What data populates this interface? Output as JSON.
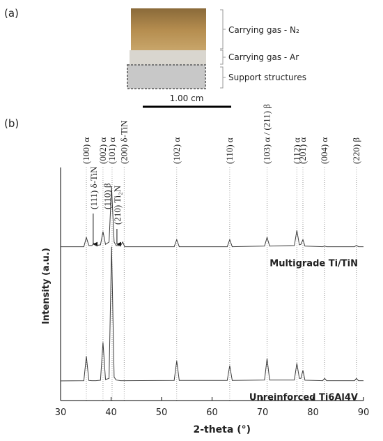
{
  "panel_a": {
    "label": "(a)",
    "layers": [
      "Carrying gas - N₂",
      "Carrying gas - Ar",
      "Support structures"
    ],
    "scale_bar": "1.00 cm"
  },
  "chart_data": {
    "type": "line",
    "panel_label": "(b)",
    "xlabel": "2-theta (°)",
    "ylabel": "Intensity (a.u.)",
    "x": [
      30,
      34.6,
      35.1,
      35.6,
      36.2,
      36.6,
      37.0,
      37.9,
      38.4,
      38.9,
      39.6,
      40.1,
      40.6,
      41.0,
      41.9,
      42.3,
      42.7,
      52.5,
      53.0,
      53.5,
      63.0,
      63.5,
      64.0,
      70.4,
      70.9,
      71.4,
      76.3,
      76.8,
      77.3,
      77.6,
      78.0,
      78.4,
      81.9,
      82.3,
      82.7,
      88.2,
      88.6,
      89.0,
      90
    ],
    "series": [
      {
        "name": "Multigrade Ti/TiN",
        "color": "#3a3a3a",
        "values": [
          66,
          66,
          70,
          66.5,
          66.5,
          67.5,
          66.5,
          66.8,
          72.5,
          67,
          68,
          91.6,
          68,
          66.5,
          66.5,
          68,
          66,
          66,
          69,
          66,
          66,
          69,
          66,
          66.3,
          70,
          66.3,
          66.5,
          73,
          66.8,
          67,
          69,
          66.3,
          66,
          66.3,
          66,
          66,
          66.6,
          66,
          66
        ]
      },
      {
        "name": "Unreinforced Ti6Al4V",
        "color": "#3a3a3a",
        "values": [
          8.4,
          8.5,
          19,
          8.6,
          8.5,
          8.5,
          8.5,
          8.7,
          25,
          9,
          9.5,
          66,
          10,
          8.8,
          8.5,
          8.5,
          8.5,
          8.6,
          17,
          8.6,
          8.6,
          15,
          8.6,
          8.8,
          18,
          8.8,
          8.8,
          16,
          9.5,
          9.5,
          13,
          8.7,
          8.5,
          9.5,
          8.5,
          8.5,
          9.5,
          8.5,
          8.5
        ]
      }
    ],
    "xlim": [
      30,
      90
    ],
    "xticks": [
      30,
      40,
      50,
      60,
      70,
      80,
      90
    ],
    "ylim": [
      0,
      100
    ],
    "peak_labels": [
      {
        "x": 35.1,
        "label": "(100) α"
      },
      {
        "x": 38.4,
        "label": "(002) α"
      },
      {
        "x": 40.2,
        "label": "(101) α"
      },
      {
        "x": 42.6,
        "label": "(200) δ-TiN"
      },
      {
        "x": 53.0,
        "label": "(102) α"
      },
      {
        "x": 63.5,
        "label": "(110) α"
      },
      {
        "x": 70.9,
        "label": "(103) α / (211) β"
      },
      {
        "x": 76.8,
        "label": "(112) α"
      },
      {
        "x": 78.0,
        "label": "(201) α"
      },
      {
        "x": 82.3,
        "label": "(004) α"
      },
      {
        "x": 88.6,
        "label": "(220) β"
      }
    ],
    "inner_peak_labels": [
      {
        "x": 36.6,
        "label": "(111) δ-TiN"
      },
      {
        "x": 39.3,
        "label": "(110) β"
      },
      {
        "x": 41.3,
        "label": "(210) Ti₂N"
      }
    ]
  }
}
